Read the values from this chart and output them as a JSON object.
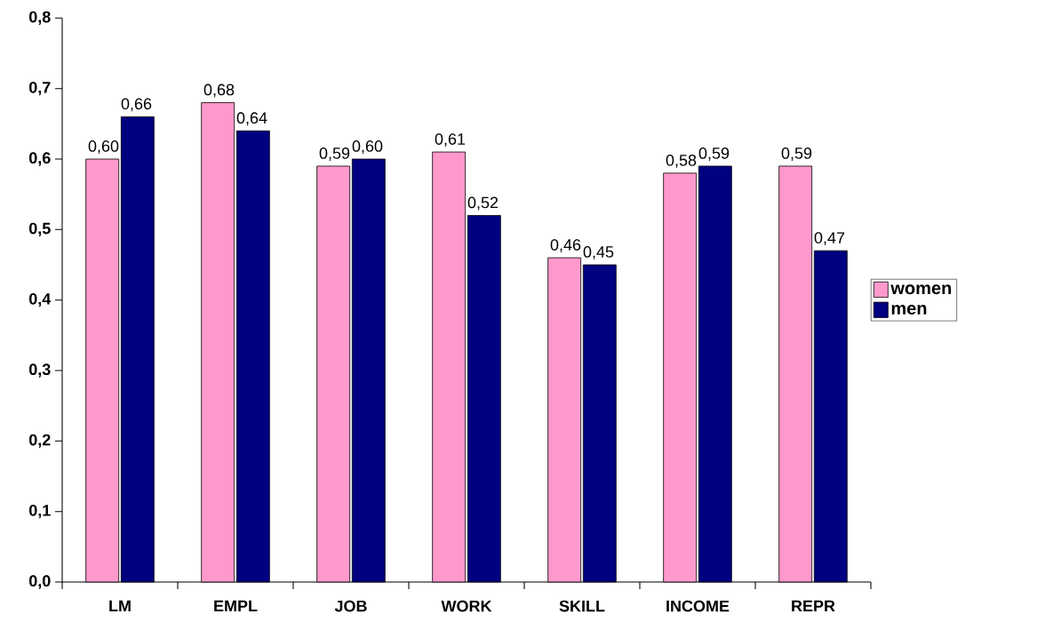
{
  "chart_data": {
    "type": "bar",
    "categories": [
      "LM",
      "EMPL",
      "JOB",
      "WORK",
      "SKILL",
      "INCOME",
      "REPR"
    ],
    "series": [
      {
        "name": "women",
        "color": "#ff99cc",
        "values": [
          0.6,
          0.68,
          0.59,
          0.61,
          0.46,
          0.58,
          0.59
        ],
        "value_labels": [
          "0,60",
          "0,68",
          "0,59",
          "0,61",
          "0,46",
          "0,58",
          "0,59"
        ]
      },
      {
        "name": "men",
        "color": "#000080",
        "values": [
          0.66,
          0.64,
          0.6,
          0.52,
          0.45,
          0.59,
          0.47
        ],
        "value_labels": [
          "0,66",
          "0,64",
          "0,60",
          "0,52",
          "0,45",
          "0,59",
          "0,47"
        ]
      }
    ],
    "ylim": [
      0,
      0.8
    ],
    "yticks": [
      {
        "value": 0,
        "label": "0,0"
      },
      {
        "value": 0.1,
        "label": "0,1"
      },
      {
        "value": 0.2,
        "label": "0,2"
      },
      {
        "value": 0.3,
        "label": "0,3"
      },
      {
        "value": 0.4,
        "label": "0,4"
      },
      {
        "value": 0.5,
        "label": "0,5"
      },
      {
        "value": 0.6,
        "label": "0,6"
      },
      {
        "value": 0.7,
        "label": "0,7"
      },
      {
        "value": 0.8,
        "label": "0,8"
      }
    ],
    "grid": false,
    "legend": "right"
  }
}
